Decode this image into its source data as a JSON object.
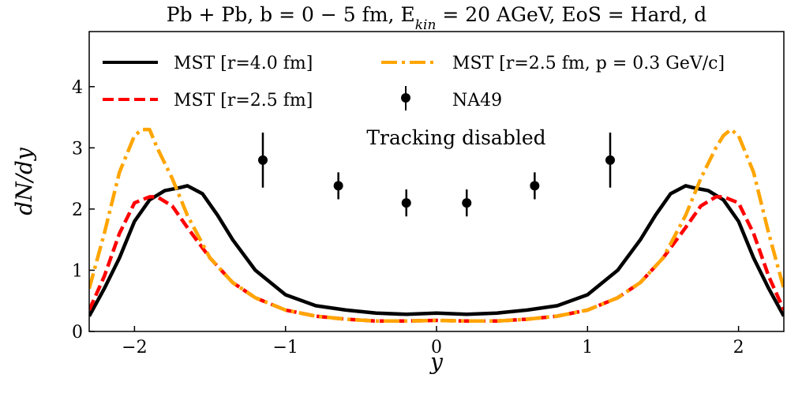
{
  "chart_data": {
    "type": "line",
    "title": "Pb + Pb, b = 0 − 5 fm, E",
    "title_sub": "kin",
    "title_rest": " = 20 AGeV, EoS = Hard, d",
    "xlabel": "y",
    "ylabel": "dN/dy",
    "xlim": [
      -2.3,
      2.3
    ],
    "ylim": [
      0,
      4.9
    ],
    "xticks": [
      -2,
      -1,
      0,
      1,
      2
    ],
    "xtick_labels": [
      "−2",
      "−1",
      "0",
      "1",
      "2"
    ],
    "yticks": [
      0,
      1,
      2,
      3,
      4
    ],
    "ytick_labels": [
      "0",
      "1",
      "2",
      "3",
      "4"
    ],
    "annotation": "Tracking disabled",
    "series": [
      {
        "name": "MST [r=4.0 fm]",
        "color": "#000000",
        "style": "solid",
        "x": [
          -2.3,
          -2.2,
          -2.1,
          -2.0,
          -1.9,
          -1.8,
          -1.7,
          -1.65,
          -1.55,
          -1.45,
          -1.35,
          -1.2,
          -1.0,
          -0.8,
          -0.6,
          -0.4,
          -0.2,
          0.0,
          0.2,
          0.4,
          0.6,
          0.8,
          1.0,
          1.2,
          1.35,
          1.45,
          1.55,
          1.65,
          1.7,
          1.8,
          1.9,
          2.0,
          2.1,
          2.2,
          2.3
        ],
        "values": [
          0.25,
          0.7,
          1.2,
          1.8,
          2.15,
          2.3,
          2.35,
          2.38,
          2.25,
          1.9,
          1.5,
          1.0,
          0.6,
          0.42,
          0.35,
          0.3,
          0.28,
          0.3,
          0.28,
          0.3,
          0.35,
          0.42,
          0.6,
          1.0,
          1.5,
          1.9,
          2.25,
          2.38,
          2.35,
          2.3,
          2.15,
          1.8,
          1.2,
          0.7,
          0.25
        ]
      },
      {
        "name": "MST [r=2.5 fm]",
        "color": "#ff0000",
        "style": "dashed",
        "x": [
          -2.3,
          -2.2,
          -2.1,
          -2.0,
          -1.9,
          -1.85,
          -1.75,
          -1.65,
          -1.5,
          -1.35,
          -1.2,
          -1.0,
          -0.8,
          -0.6,
          -0.4,
          -0.2,
          0.0,
          0.2,
          0.4,
          0.6,
          0.8,
          1.0,
          1.2,
          1.35,
          1.5,
          1.65,
          1.75,
          1.85,
          1.9,
          2.0,
          2.1,
          2.2,
          2.3
        ],
        "values": [
          0.35,
          0.9,
          1.6,
          2.1,
          2.2,
          2.2,
          2.05,
          1.7,
          1.2,
          0.8,
          0.55,
          0.35,
          0.25,
          0.2,
          0.17,
          0.17,
          0.18,
          0.17,
          0.17,
          0.2,
          0.25,
          0.35,
          0.55,
          0.8,
          1.2,
          1.7,
          2.05,
          2.2,
          2.2,
          2.1,
          1.6,
          0.9,
          0.35
        ]
      },
      {
        "name": "MST [r=2.5 fm, p = 0.3 GeV/c]",
        "color": "#ffa500",
        "style": "dashdot",
        "x": [
          -2.3,
          -2.2,
          -2.1,
          -2.0,
          -1.95,
          -1.9,
          -1.85,
          -1.75,
          -1.65,
          -1.5,
          -1.35,
          -1.2,
          -1.0,
          -0.8,
          -0.6,
          -0.4,
          -0.2,
          0.0,
          0.2,
          0.4,
          0.6,
          0.8,
          1.0,
          1.2,
          1.35,
          1.5,
          1.65,
          1.75,
          1.85,
          1.9,
          1.95,
          2.0,
          2.1,
          2.2,
          2.3
        ],
        "values": [
          0.7,
          1.6,
          2.6,
          3.2,
          3.3,
          3.3,
          3.0,
          2.5,
          1.9,
          1.2,
          0.8,
          0.55,
          0.35,
          0.25,
          0.2,
          0.17,
          0.17,
          0.18,
          0.17,
          0.17,
          0.2,
          0.25,
          0.35,
          0.55,
          0.8,
          1.2,
          1.9,
          2.5,
          3.0,
          3.2,
          3.3,
          3.2,
          2.6,
          1.6,
          0.7
        ]
      },
      {
        "name": "NA49",
        "color": "#000000",
        "style": "errorbar",
        "x": [
          -1.15,
          -0.65,
          -0.2,
          0.2,
          0.65,
          1.15
        ],
        "values": [
          2.8,
          2.38,
          2.1,
          2.1,
          2.38,
          2.8
        ],
        "errors": [
          0.45,
          0.22,
          0.22,
          0.22,
          0.22,
          0.45
        ]
      }
    ],
    "legend_position": "top"
  }
}
